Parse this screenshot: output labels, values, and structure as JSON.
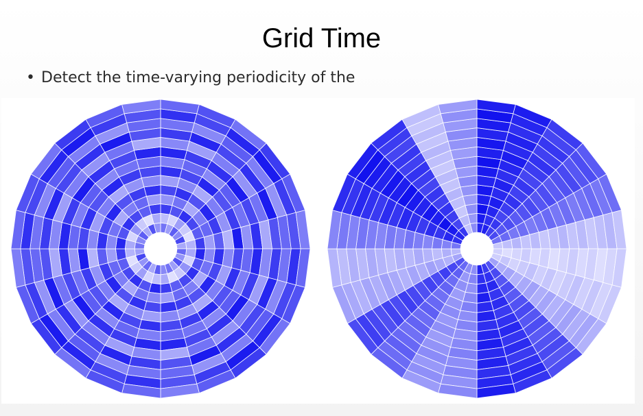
{
  "slide": {
    "title": "Grid Time",
    "bullet": "Detect the time-varying periodicity of the"
  },
  "colors": {
    "light": "#ffffff",
    "dark": "#1010ee",
    "stroke": "#ffffff"
  },
  "chart_data": [
    {
      "type": "heatmap",
      "subtype": "radial-grid",
      "sectors": 24,
      "rings": 14,
      "pattern": "concentric bands of varying intensity (alternating rings)",
      "intensity_matrix_rows_by_ring": [
        [
          0.55,
          0.35,
          0.65,
          0.45,
          0.75,
          0.3,
          0.6,
          0.4,
          0.7,
          0.35,
          0.55,
          0.45,
          0.65,
          0.3,
          0.6,
          0.4,
          0.75,
          0.35,
          0.55,
          0.45,
          0.65,
          0.3,
          0.7,
          0.4
        ],
        [
          0.2,
          0.1,
          0.35,
          0.15,
          0.05,
          0.25,
          0.3,
          0.1,
          0.4,
          0.15,
          0.05,
          0.3,
          0.2,
          0.1,
          0.35,
          0.15,
          0.05,
          0.25,
          0.3,
          0.1,
          0.4,
          0.15,
          0.05,
          0.3
        ],
        [
          0.8,
          0.7,
          0.85,
          0.75,
          0.65,
          0.8,
          0.9,
          0.7,
          0.85,
          0.75,
          0.65,
          0.8,
          0.9,
          0.7,
          0.85,
          0.75,
          0.65,
          0.8,
          0.9,
          0.7,
          0.85,
          0.75,
          0.65,
          0.8
        ],
        [
          0.4,
          0.55,
          0.3,
          0.5,
          0.6,
          0.35,
          0.45,
          0.55,
          0.3,
          0.5,
          0.6,
          0.35,
          0.45,
          0.55,
          0.3,
          0.5,
          0.6,
          0.35,
          0.45,
          0.55,
          0.3,
          0.5,
          0.6,
          0.35
        ],
        [
          0.75,
          0.85,
          0.7,
          0.9,
          0.8,
          0.65,
          0.85,
          0.75,
          0.9,
          0.7,
          0.8,
          0.85,
          0.75,
          0.85,
          0.7,
          0.9,
          0.8,
          0.65,
          0.85,
          0.75,
          0.9,
          0.7,
          0.8,
          0.85
        ],
        [
          0.35,
          0.45,
          0.3,
          0.5,
          0.4,
          0.25,
          0.45,
          0.35,
          0.5,
          0.3,
          0.4,
          0.45,
          0.35,
          0.45,
          0.3,
          0.5,
          0.4,
          0.25,
          0.45,
          0.35,
          0.5,
          0.3,
          0.4,
          0.45
        ],
        [
          0.85,
          0.75,
          0.9,
          0.7,
          0.8,
          0.95,
          0.75,
          0.85,
          0.7,
          0.9,
          0.8,
          0.75,
          0.85,
          0.75,
          0.9,
          0.7,
          0.8,
          0.95,
          0.75,
          0.85,
          0.7,
          0.9,
          0.8,
          0.75
        ],
        [
          0.5,
          0.6,
          0.45,
          0.65,
          0.55,
          0.4,
          0.6,
          0.5,
          0.65,
          0.45,
          0.55,
          0.6,
          0.5,
          0.6,
          0.45,
          0.65,
          0.55,
          0.4,
          0.6,
          0.5,
          0.65,
          0.45,
          0.55,
          0.6
        ],
        [
          0.9,
          0.8,
          0.85,
          0.95,
          0.75,
          0.85,
          0.9,
          0.8,
          0.95,
          0.85,
          0.75,
          0.9,
          0.9,
          0.8,
          0.85,
          0.95,
          0.75,
          0.85,
          0.9,
          0.8,
          0.95,
          0.85,
          0.75,
          0.9
        ],
        [
          0.45,
          0.35,
          0.5,
          0.4,
          0.55,
          0.3,
          0.45,
          0.35,
          0.5,
          0.4,
          0.55,
          0.3,
          0.45,
          0.35,
          0.5,
          0.4,
          0.55,
          0.3,
          0.45,
          0.35,
          0.5,
          0.4,
          0.55,
          0.3
        ],
        [
          0.8,
          0.9,
          0.75,
          0.85,
          0.95,
          0.7,
          0.8,
          0.9,
          0.75,
          0.85,
          0.95,
          0.7,
          0.8,
          0.9,
          0.75,
          0.85,
          0.95,
          0.7,
          0.8,
          0.9,
          0.75,
          0.85,
          0.95,
          0.7
        ],
        [
          0.55,
          0.45,
          0.65,
          0.5,
          0.4,
          0.6,
          0.55,
          0.45,
          0.65,
          0.5,
          0.4,
          0.6,
          0.55,
          0.45,
          0.65,
          0.5,
          0.4,
          0.6,
          0.55,
          0.45,
          0.65,
          0.5,
          0.4,
          0.6
        ],
        [
          0.85,
          0.75,
          0.9,
          0.95,
          0.8,
          0.7,
          0.85,
          0.75,
          0.9,
          0.95,
          0.8,
          0.7,
          0.85,
          0.75,
          0.9,
          0.95,
          0.8,
          0.7,
          0.85,
          0.75,
          0.9,
          0.95,
          0.8,
          0.7
        ],
        [
          0.6,
          0.7,
          0.55,
          0.8,
          0.65,
          0.5,
          0.6,
          0.7,
          0.55,
          0.8,
          0.65,
          0.5,
          0.6,
          0.7,
          0.55,
          0.8,
          0.65,
          0.5,
          0.6,
          0.7,
          0.55,
          0.8,
          0.65,
          0.5
        ]
      ]
    },
    {
      "type": "heatmap",
      "subtype": "radial-grid",
      "sectors": 24,
      "rings": 14,
      "pattern": "radial wedges of varying intensity (alternating sectors)",
      "sector_intensity": [
        0.95,
        0.9,
        0.8,
        0.7,
        0.55,
        0.2,
        0.1,
        0.15,
        0.3,
        0.7,
        0.85,
        0.9,
        0.45,
        0.4,
        0.6,
        0.75,
        0.3,
        0.25,
        0.5,
        0.85,
        0.95,
        0.8,
        0.2,
        0.4
      ]
    }
  ]
}
